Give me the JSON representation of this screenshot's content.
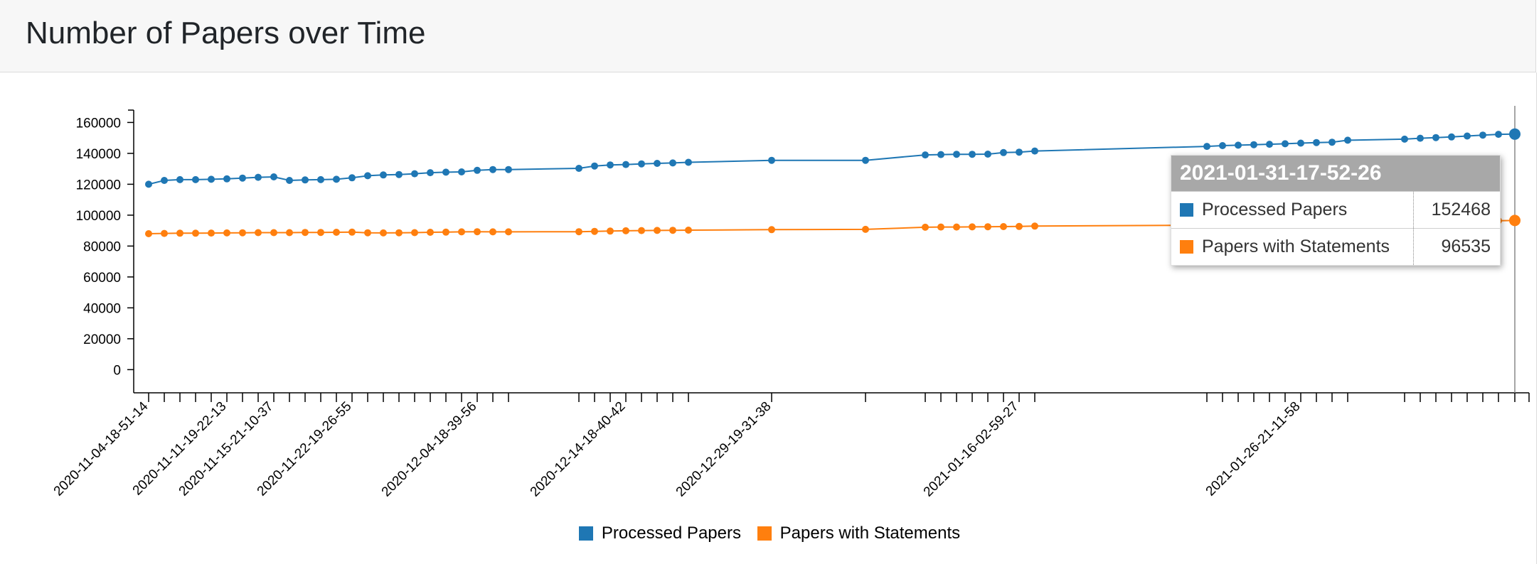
{
  "page": {
    "title": "Number of Papers over Time"
  },
  "chart_data": {
    "type": "line",
    "title": "",
    "xlabel": "",
    "ylabel": "",
    "x_labels": [
      "2020-11-04-18-51-14",
      "2020-11-11-19-22-13",
      "2020-11-15-21-10-37",
      "2020-11-22-19-26-55",
      "2020-12-04-18-39-56",
      "2020-12-14-18-40-42",
      "2020-12-29-19-31-38",
      "2021-01-16-02-59-27",
      "2021-01-26-21-11-58"
    ],
    "ylim": [
      -15000,
      168000
    ],
    "y_ticks": [
      0,
      20000,
      40000,
      60000,
      80000,
      100000,
      120000,
      140000,
      160000
    ],
    "series": [
      {
        "name": "Processed Papers",
        "color": "#1f77b4",
        "values": [
          120000,
          122500,
          123000,
          123000,
          123200,
          123500,
          124000,
          124500,
          124800,
          122500,
          122800,
          123000,
          123200,
          124200,
          125500,
          126000,
          126300,
          126800,
          127500,
          127800,
          128000,
          129000,
          129500,
          129500,
          130300,
          131800,
          132500,
          132800,
          133200,
          133500,
          133800,
          134200,
          135500,
          135500,
          139000,
          139200,
          139400,
          139400,
          139500,
          140500,
          140800,
          141500,
          144500,
          145000,
          145300,
          145600,
          145900,
          146200,
          146600,
          147000,
          147200,
          148500,
          149200,
          149800,
          150200,
          150600,
          151200,
          151800,
          152300,
          152468
        ]
      },
      {
        "name": "Papers with Statements",
        "color": "#ff7f0e",
        "values": [
          88000,
          88200,
          88300,
          88300,
          88400,
          88500,
          88600,
          88700,
          88700,
          88700,
          88800,
          88800,
          88900,
          89000,
          88600,
          88500,
          88600,
          88700,
          88900,
          89000,
          89200,
          89300,
          89200,
          89200,
          89300,
          89500,
          89700,
          89900,
          90000,
          90100,
          90200,
          90300,
          90600,
          90800,
          92200,
          92300,
          92300,
          92400,
          92500,
          92600,
          92700,
          92900,
          93500,
          93700,
          93900,
          94100,
          94300,
          94500,
          94700,
          94900,
          95000,
          95300,
          95500,
          95700,
          95800,
          95900,
          96100,
          96300,
          96400,
          96535
        ]
      }
    ],
    "grid": false,
    "legend_position": "bottom-center"
  },
  "tooltip": {
    "title": "2021-01-31-17-52-26",
    "rows": [
      {
        "name": "Processed Papers",
        "value": "152468",
        "color": "#1f77b4"
      },
      {
        "name": "Papers with Statements",
        "value": "96535",
        "color": "#ff7f0e"
      }
    ]
  },
  "legend": [
    {
      "name": "Processed Papers",
      "color": "#1f77b4"
    },
    {
      "name": "Papers with Statements",
      "color": "#ff7f0e"
    }
  ]
}
